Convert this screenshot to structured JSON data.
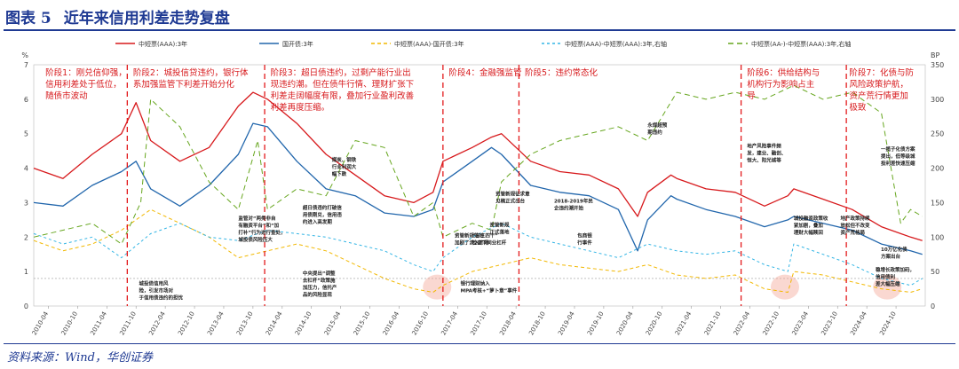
{
  "figure": {
    "label": "图表 5",
    "title": "近年来信用利差走势复盘",
    "source": "资料来源：Wind，华创证券"
  },
  "chart_data": {
    "type": "line",
    "left_axis": {
      "unit": "%",
      "ylim": [
        0,
        7
      ],
      "ticks": [
        0,
        1,
        2,
        3,
        4,
        5,
        6,
        7
      ]
    },
    "right_axis": {
      "unit": "BP",
      "ylim": [
        0,
        350
      ],
      "ticks": [
        0,
        50,
        100,
        150,
        200,
        250,
        300,
        350
      ]
    },
    "x_ticks": [
      "2010-04",
      "2010-10",
      "2011-04",
      "2011-10",
      "2012-04",
      "2012-10",
      "2013-04",
      "2013-10",
      "2014-04",
      "2014-10",
      "2015-04",
      "2015-10",
      "2016-04",
      "2016-10",
      "2017-04",
      "2017-10",
      "2018-04",
      "2018-10",
      "2019-04",
      "2019-10",
      "2020-04",
      "2020-10",
      "2021-04",
      "2021-10",
      "2022-04",
      "2022-10",
      "2023-04",
      "2023-10",
      "2024-04",
      "2024-10"
    ],
    "x_tick_values": [
      2010.25,
      2010.75,
      2011.25,
      2011.75,
      2012.25,
      2012.75,
      2013.25,
      2013.75,
      2014.25,
      2014.75,
      2015.25,
      2015.75,
      2016.25,
      2016.75,
      2017.25,
      2017.75,
      2018.25,
      2018.75,
      2019.25,
      2019.75,
      2020.25,
      2020.75,
      2021.25,
      2021.75,
      2022.25,
      2022.75,
      2023.25,
      2023.75,
      2024.25,
      2024.75
    ],
    "x_range": [
      2010.0,
      2025.25
    ],
    "legend_position": "top",
    "series": [
      {
        "name": "中短票(AAA):3年",
        "axis": "left",
        "color": "#d7191c",
        "dash": "",
        "x": [
          2010.0,
          2010.5,
          2011.0,
          2011.5,
          2011.75,
          2012.0,
          2012.5,
          2013.0,
          2013.5,
          2013.75,
          2014.0,
          2014.5,
          2015.0,
          2015.5,
          2016.0,
          2016.5,
          2016.83,
          2017.0,
          2017.5,
          2017.83,
          2018.0,
          2018.5,
          2019.0,
          2019.5,
          2020.0,
          2020.33,
          2020.5,
          2020.9,
          2021.0,
          2021.5,
          2022.0,
          2022.5,
          2022.9,
          2023.0,
          2023.5,
          2024.0,
          2024.5,
          2025.0,
          2025.2
        ],
        "y": [
          4.0,
          3.7,
          4.4,
          5.0,
          5.9,
          4.8,
          4.2,
          4.6,
          5.8,
          6.2,
          6.0,
          5.3,
          4.4,
          3.8,
          3.2,
          3.0,
          3.3,
          4.2,
          4.6,
          4.9,
          5.0,
          4.2,
          3.9,
          3.8,
          3.4,
          2.6,
          3.3,
          3.8,
          3.7,
          3.4,
          3.3,
          2.9,
          3.2,
          3.4,
          3.1,
          2.8,
          2.3,
          2.0,
          1.9
        ]
      },
      {
        "name": "国开债:3年",
        "axis": "left",
        "color": "#2166ac",
        "dash": "",
        "x": [
          2010.0,
          2010.5,
          2011.0,
          2011.5,
          2011.75,
          2012.0,
          2012.5,
          2013.0,
          2013.5,
          2013.75,
          2014.0,
          2014.5,
          2015.0,
          2015.5,
          2016.0,
          2016.5,
          2016.83,
          2017.0,
          2017.5,
          2017.83,
          2018.0,
          2018.5,
          2019.0,
          2019.5,
          2020.0,
          2020.33,
          2020.5,
          2020.9,
          2021.0,
          2021.5,
          2022.0,
          2022.5,
          2022.9,
          2023.0,
          2023.5,
          2024.0,
          2024.5,
          2025.0,
          2025.2
        ],
        "y": [
          3.0,
          2.9,
          3.5,
          3.9,
          4.2,
          3.4,
          2.9,
          3.5,
          4.4,
          5.3,
          5.2,
          4.2,
          3.4,
          3.2,
          2.7,
          2.6,
          2.8,
          3.6,
          4.2,
          4.6,
          4.4,
          3.5,
          3.3,
          3.2,
          2.8,
          1.6,
          2.5,
          3.2,
          3.1,
          2.8,
          2.6,
          2.3,
          2.5,
          2.6,
          2.4,
          2.2,
          1.8,
          1.6,
          1.5
        ]
      },
      {
        "name": "中短票(AAA)-国开债:3年",
        "axis": "right",
        "color": "#f2b800",
        "dash": "4,3",
        "x": [
          2010.0,
          2010.5,
          2011.0,
          2011.5,
          2012.0,
          2012.5,
          2013.0,
          2013.5,
          2014.0,
          2014.5,
          2015.0,
          2015.5,
          2016.0,
          2016.5,
          2016.83,
          2017.0,
          2017.5,
          2018.0,
          2018.5,
          2019.0,
          2019.5,
          2020.0,
          2020.5,
          2021.0,
          2021.5,
          2022.0,
          2022.5,
          2022.9,
          2023.0,
          2023.5,
          2024.0,
          2024.5,
          2025.0,
          2025.2
        ],
        "y": [
          95,
          80,
          90,
          110,
          140,
          120,
          100,
          70,
          80,
          90,
          80,
          60,
          40,
          25,
          20,
          30,
          50,
          60,
          70,
          60,
          55,
          50,
          60,
          45,
          40,
          45,
          25,
          20,
          50,
          45,
          35,
          25,
          20,
          25
        ]
      },
      {
        "name": "中短票(AAA)-中短票(AAA):3年,右轴",
        "axis": "right",
        "color": "#33b5e5",
        "dash": "3,3",
        "x": [
          2010.0,
          2010.5,
          2011.0,
          2011.5,
          2012.0,
          2012.5,
          2013.0,
          2013.5,
          2014.0,
          2014.5,
          2015.0,
          2015.5,
          2016.0,
          2016.5,
          2016.83,
          2017.0,
          2017.5,
          2018.0,
          2018.5,
          2019.0,
          2019.5,
          2020.0,
          2020.5,
          2021.0,
          2021.5,
          2022.0,
          2022.5,
          2022.9,
          2023.0,
          2023.5,
          2024.0,
          2024.5,
          2025.0,
          2025.2
        ],
        "y": [
          105,
          90,
          100,
          70,
          105,
          120,
          100,
          95,
          110,
          105,
          100,
          90,
          80,
          60,
          50,
          70,
          100,
          120,
          100,
          90,
          80,
          70,
          90,
          80,
          75,
          80,
          60,
          50,
          90,
          75,
          60,
          40,
          30,
          40
        ]
      },
      {
        "name": "中短票(AA-)-中短票(AAA):3年,右轴",
        "axis": "right",
        "color": "#66a61e",
        "dash": "6,4",
        "x": [
          2010.0,
          2010.5,
          2011.0,
          2011.5,
          2011.83,
          2012.0,
          2012.5,
          2013.0,
          2013.5,
          2013.83,
          2014.0,
          2014.5,
          2015.0,
          2015.5,
          2016.0,
          2016.5,
          2016.83,
          2017.0,
          2017.5,
          2017.83,
          2018.0,
          2018.5,
          2019.0,
          2019.5,
          2020.0,
          2020.5,
          2021.0,
          2021.5,
          2022.0,
          2022.5,
          2023.0,
          2023.5,
          2024.0,
          2024.5,
          2024.83,
          2025.0,
          2025.2
        ],
        "y": [
          100,
          110,
          120,
          90,
          150,
          300,
          260,
          180,
          140,
          240,
          140,
          170,
          160,
          240,
          230,
          130,
          150,
          100,
          120,
          110,
          180,
          220,
          240,
          250,
          260,
          240,
          310,
          300,
          310,
          300,
          320,
          300,
          310,
          280,
          120,
          140,
          130
        ]
      }
    ],
    "stages": [
      {
        "x": 2011.6,
        "lines": [
          "阶段1：刚兑信仰强，",
          "信用利差处于低位，",
          "随债市波动"
        ]
      },
      {
        "x": 2014.0,
        "lines": [
          "阶段2：城投信贷违约，银行体",
          "系加强监管下利差开始分化"
        ]
      },
      {
        "x": 2017.0,
        "lines": [
          "阶段3：超日债违约，过剩产能行业出",
          "现违约潮。但在债牛行情、理财扩张下",
          "利差走阔幅度有限，叠加行业盈利改善",
          "利差再度压缩。"
        ]
      },
      {
        "x": 2018.3,
        "lines": [
          "阶段4：金融强监管"
        ]
      },
      {
        "x": 2022.1,
        "lines": [
          "阶段5：违约常态化"
        ]
      },
      {
        "x": 2023.9,
        "lines": [
          "阶段6：供给结构与",
          "机构行为影响占主",
          "导"
        ]
      },
      {
        "x": 2025.3,
        "lines": [
          "阶段7：化债与防",
          "风险政策护航，",
          "资产荒行情更加",
          "极致"
        ]
      }
    ],
    "annotations": [
      {
        "x": 2013.5,
        "y": 2.5,
        "lines": [
          "监管对“两类非自",
          "有融资平台”和“加",
          "打补”行为进行查处，",
          "城投债风险压大"
        ]
      },
      {
        "x": 2011.8,
        "y": 0.6,
        "lines": [
          "城投债信用风",
          "险，引发市场对",
          "于信用债违约的担忧"
        ]
      },
      {
        "x": 2015.1,
        "y": 4.2,
        "lines": [
          "煤炭、钢铁",
          "行业利润大",
          "幅下跌"
        ]
      },
      {
        "x": 2014.6,
        "y": 2.8,
        "lines": [
          "超日债违约打破信",
          "用债刚兑，信用违",
          "约进入高发期"
        ]
      },
      {
        "x": 2014.6,
        "y": 0.9,
        "lines": [
          "中央提出“调整",
          "去杠杆”政策施",
          "加压力，信托产",
          "品的风险显现"
        ]
      },
      {
        "x": 2017.9,
        "y": 3.2,
        "lines": [
          "资管新规征求意",
          "见稿正式出台"
        ]
      },
      {
        "x": 2017.2,
        "y": 2.0,
        "lines": [
          "资管新规落地",
          "加剧了流入市场"
        ]
      },
      {
        "x": 2017.8,
        "y": 2.3,
        "lines": [
          "资管新规",
          "正式落地"
        ]
      },
      {
        "x": 2017.5,
        "y": 2.0,
        "lines": [
          "“三三四十”",
          "检查下同业杠杆"
        ]
      },
      {
        "x": 2017.3,
        "y": 0.6,
        "lines": [
          "银行理财纳入",
          "MPA考核+“萝卜章”事件"
        ]
      },
      {
        "x": 2018.9,
        "y": 3.0,
        "lines": [
          "2018-2019年民",
          "企违约潮开始"
        ]
      },
      {
        "x": 2019.3,
        "y": 2.0,
        "lines": [
          "包商银",
          "行事件"
        ]
      },
      {
        "x": 2020.5,
        "y": 5.2,
        "lines": [
          "永煤超预",
          "期违约"
        ]
      },
      {
        "x": 2022.2,
        "y": 4.6,
        "lines": [
          "地产风险事件频",
          "发，建业、融创、",
          "恒大、阳光城等"
        ]
      },
      {
        "x": 2023.0,
        "y": 2.5,
        "lines": [
          "城投融资政策收",
          "紧加剧，叠加",
          "理财大幅赎回"
        ]
      },
      {
        "x": 2023.8,
        "y": 2.5,
        "lines": [
          "地产政策持续",
          "放松但不改变",
          "资产荒格局"
        ]
      },
      {
        "x": 2024.8,
        "y": 4.5,
        "lines": [
          "一揽子化债方案",
          "提出，低等级城",
          "投利差快速压缩"
        ]
      },
      {
        "x": 2024.4,
        "y": 1.0,
        "lines": [
          "稳增长政策加码，",
          "信用债利",
          "差大幅压缩"
        ]
      },
      {
        "x": 2025.2,
        "y": 1.6,
        "lines": [
          "10万亿化债",
          "方案出台"
        ]
      }
    ]
  }
}
